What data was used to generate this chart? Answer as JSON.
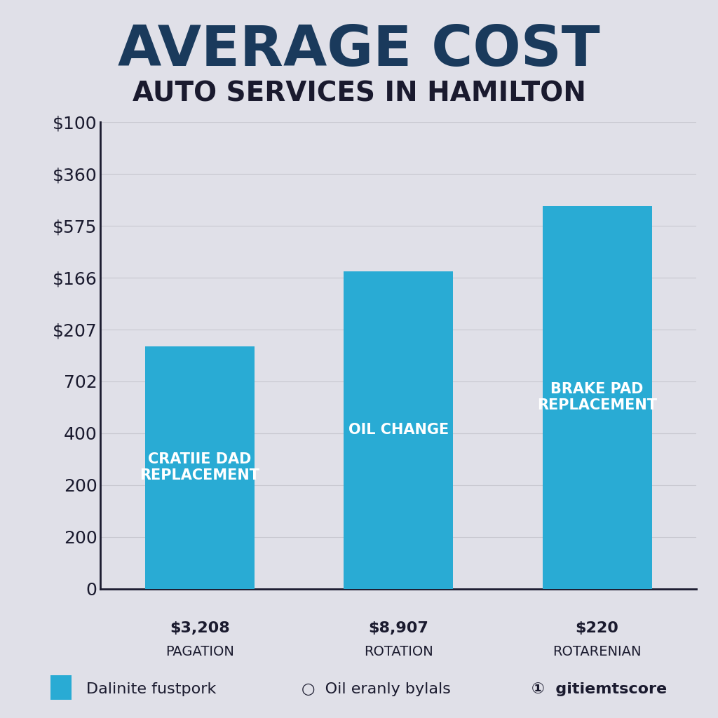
{
  "title_line1": "AVERAGE COST",
  "title_line2": "AUTO SERVICES IN HAMILTON",
  "bar_labels": [
    "CRATIIE DAD\nREPLACEMENT",
    "OIL CHANGE",
    "BRAKE PAD\nREPLACEMENT"
  ],
  "bar_values": [
    0.52,
    0.68,
    0.82
  ],
  "bar_color": "#29ABD4",
  "x_labels_line1": [
    "$3,208",
    "$8,907",
    "$220"
  ],
  "x_labels_line2": [
    "PAGATION",
    "ROTATION",
    "ROTARENIAN"
  ],
  "ytick_labels": [
    "$100",
    "$360",
    "$575",
    "$166",
    "$207",
    "702",
    "400",
    "200",
    "200",
    "0"
  ],
  "background_color": "#E0E0E8",
  "title_color": "#1A3A5C",
  "subtitle_color": "#1A1A2E",
  "bar_text_color": "#FFFFFF",
  "axis_color": "#1A1A2E",
  "legend_text1": "Dalinite fustpork",
  "legend_text2": "Oil eranly bylals",
  "legend_text3": "gitiemtscore",
  "grid_color": "#C8C8D0"
}
